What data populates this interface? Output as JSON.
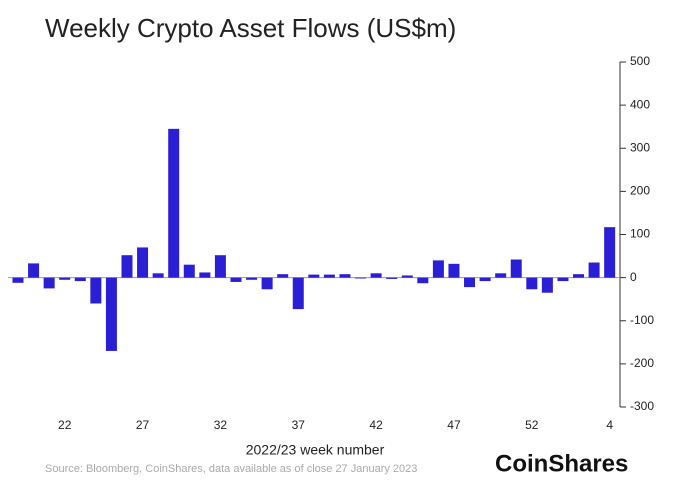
{
  "chart_data": {
    "type": "bar",
    "title": "Weekly Crypto Asset Flows (US$m)",
    "x_label": "2022/23 week number",
    "source": "Source: Bloomberg, CoinShares, data available as of close 27 January 2023",
    "brand": "CoinShares",
    "categories": [
      null,
      null,
      null,
      "22",
      null,
      null,
      null,
      null,
      "27",
      null,
      null,
      null,
      null,
      "32",
      null,
      null,
      null,
      null,
      "37",
      null,
      null,
      null,
      null,
      "42",
      null,
      null,
      null,
      null,
      "47",
      null,
      null,
      null,
      null,
      "52",
      null,
      null,
      null,
      null,
      "4"
    ],
    "values": [
      -12,
      33,
      -25,
      -5,
      -8,
      -60,
      -170,
      52,
      70,
      10,
      345,
      30,
      12,
      52,
      -10,
      -5,
      -27,
      8,
      -73,
      7,
      7,
      8,
      -2,
      10,
      -3,
      5,
      -13,
      40,
      32,
      -22,
      -8,
      10,
      42,
      -27,
      -35,
      -8,
      8,
      35,
      117
    ],
    "color": "#2b1fd6",
    "ylim": [
      -300,
      500
    ],
    "yticks": [
      -300,
      -200,
      -100,
      0,
      100,
      200,
      300,
      400,
      500
    ]
  }
}
